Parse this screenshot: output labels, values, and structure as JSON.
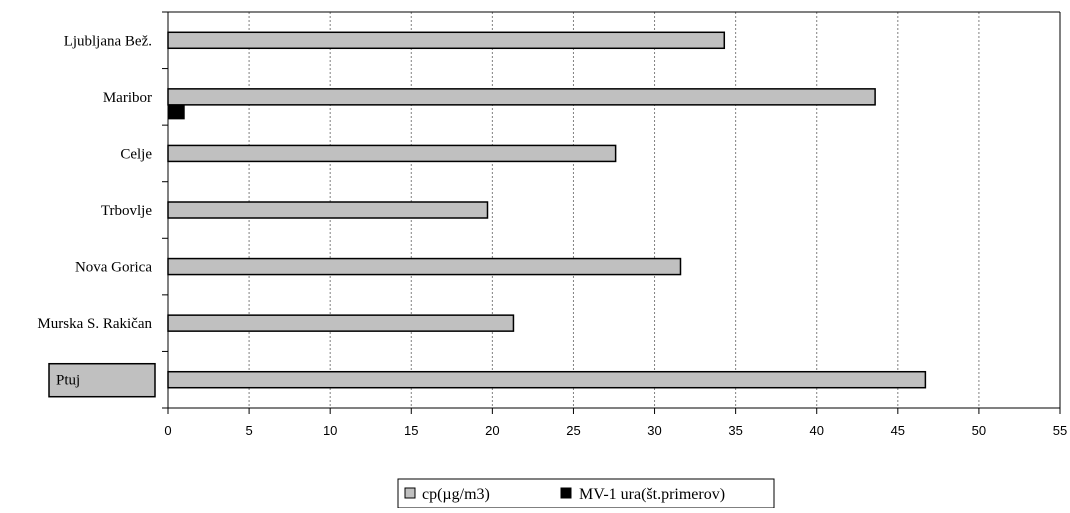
{
  "chart_data": {
    "type": "bar",
    "orientation": "horizontal",
    "categories": [
      "Ljubljana Bež.",
      "Maribor",
      "Celje",
      "Trbovlje",
      "Nova Gorica",
      "Murska S. Rakičan",
      "Ptuj"
    ],
    "highlighted_category": "Ptuj",
    "series": [
      {
        "name": "cp(µg/m3)",
        "values": [
          34.3,
          43.6,
          27.6,
          19.7,
          31.6,
          21.3,
          46.7
        ],
        "color": "#c0c0c0"
      },
      {
        "name": "MV-1 ura(št.primerov)",
        "values": [
          null,
          1,
          null,
          null,
          null,
          null,
          null
        ],
        "color": "#000000"
      }
    ],
    "xlim": [
      0,
      55
    ],
    "xticks": [
      0,
      5,
      10,
      15,
      20,
      25,
      30,
      35,
      40,
      45,
      50,
      55
    ],
    "grid": "vertical-dashed",
    "legend_position": "bottom-center"
  }
}
